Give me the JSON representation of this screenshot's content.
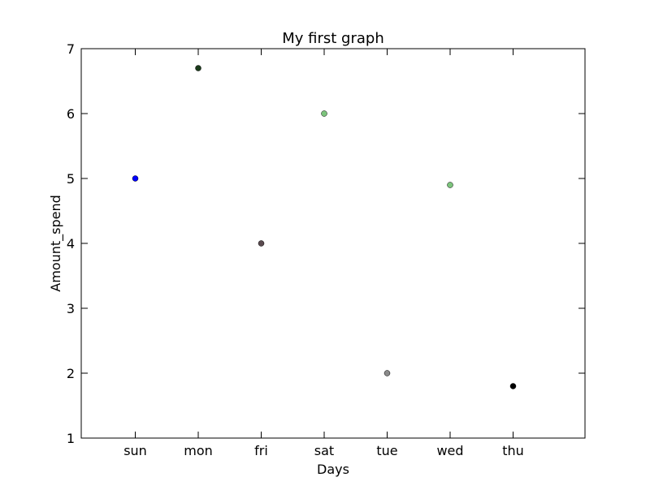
{
  "chart_data": {
    "type": "scatter",
    "title": "My first graph",
    "xlabel": "Days",
    "ylabel": "Amount_spend",
    "categories": [
      "sun",
      "mon",
      "fri",
      "sat",
      "tue",
      "wed",
      "thu"
    ],
    "values": [
      5,
      6.7,
      4,
      6,
      2,
      4.9,
      1.8
    ],
    "point_colors": [
      "#0000ff",
      "#1a3a1a",
      "#5a4a4f",
      "#7cc47c",
      "#8a8a8a",
      "#7cc47c",
      "#000000"
    ],
    "ylim": [
      1,
      7
    ],
    "yticks": [
      1,
      2,
      3,
      4,
      5,
      6,
      7
    ],
    "grid": false,
    "legend": "none"
  }
}
